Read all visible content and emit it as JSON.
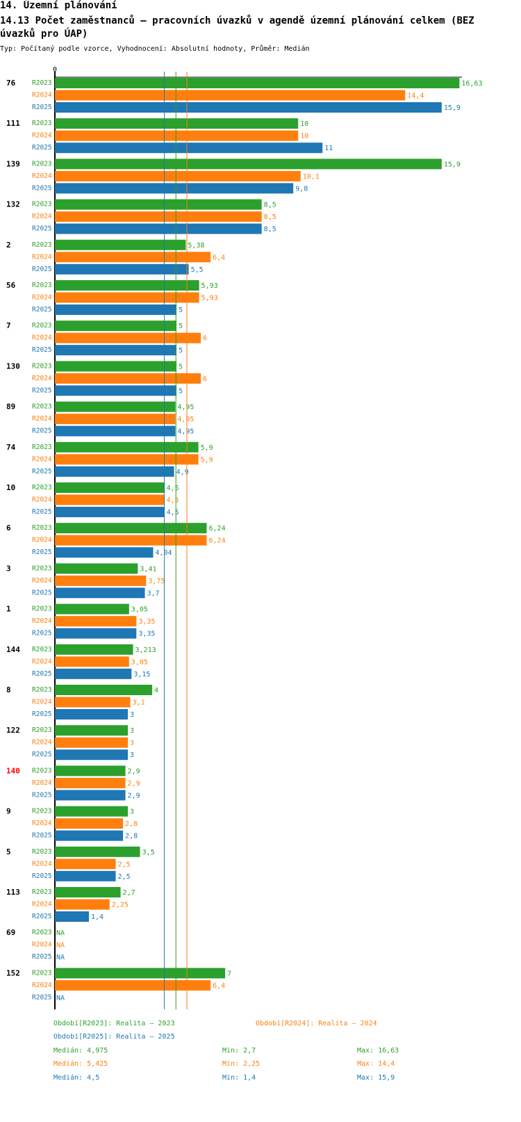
{
  "header": {
    "section": "14. Územní plánování",
    "title": "14.13 Počet zaměstnanců – pracovních úvazků v agendě územní plánování celkem (BEZ úvazků pro ÚAP)",
    "subtitle": "Typ: Počítaný podle vzorce, Vyhodnocení: Absolutní hodnoty, Průměr: Medián"
  },
  "colors": {
    "R2023": "#2ca02c",
    "R2024": "#ff7f0e",
    "R2025": "#1f77b4",
    "highlight": "#ff0000"
  },
  "chart_data": {
    "type": "bar",
    "orientation": "horizontal",
    "axis_zero_label": "0",
    "xlim": [
      0,
      16.63
    ],
    "series_names": [
      "R2023",
      "R2024",
      "R2025"
    ],
    "categories": [
      "76",
      "111",
      "139",
      "132",
      "2",
      "56",
      "7",
      "130",
      "89",
      "74",
      "10",
      "6",
      "3",
      "1",
      "144",
      "8",
      "122",
      "140",
      "9",
      "5",
      "113",
      "69",
      "152"
    ],
    "highlighted_category": "140",
    "groups": [
      {
        "id": "76",
        "values": [
          16.63,
          14.4,
          15.9
        ],
        "labels": [
          "16,63",
          "14,4",
          "15,9"
        ]
      },
      {
        "id": "111",
        "values": [
          10,
          10,
          11
        ],
        "labels": [
          "10",
          "10",
          "11"
        ]
      },
      {
        "id": "139",
        "values": [
          15.9,
          10.1,
          9.8
        ],
        "labels": [
          "15,9",
          "10,1",
          "9,8"
        ]
      },
      {
        "id": "132",
        "values": [
          8.5,
          8.5,
          8.5
        ],
        "labels": [
          "8,5",
          "8,5",
          "8,5"
        ]
      },
      {
        "id": "2",
        "values": [
          5.38,
          6.4,
          5.5
        ],
        "labels": [
          "5,38",
          "6,4",
          "5,5"
        ]
      },
      {
        "id": "56",
        "values": [
          5.93,
          5.93,
          5
        ],
        "labels": [
          "5,93",
          "5,93",
          "5"
        ]
      },
      {
        "id": "7",
        "values": [
          5,
          6,
          5
        ],
        "labels": [
          "5",
          "6",
          "5"
        ]
      },
      {
        "id": "130",
        "values": [
          5,
          6,
          5
        ],
        "labels": [
          "5",
          "6",
          "5"
        ]
      },
      {
        "id": "89",
        "values": [
          4.95,
          4.95,
          4.95
        ],
        "labels": [
          "4,95",
          "4,95",
          "4,95"
        ]
      },
      {
        "id": "74",
        "values": [
          5.9,
          5.9,
          4.9
        ],
        "labels": [
          "5,9",
          "5,9",
          "4,9"
        ]
      },
      {
        "id": "10",
        "values": [
          4.5,
          4.5,
          4.5
        ],
        "labels": [
          "4,5",
          "4,5",
          "4,5"
        ]
      },
      {
        "id": "6",
        "values": [
          6.24,
          6.24,
          4.04
        ],
        "labels": [
          "6,24",
          "6,24",
          "4,04"
        ]
      },
      {
        "id": "3",
        "values": [
          3.41,
          3.75,
          3.7
        ],
        "labels": [
          "3,41",
          "3,75",
          "3,7"
        ]
      },
      {
        "id": "1",
        "values": [
          3.05,
          3.35,
          3.35
        ],
        "labels": [
          "3,05",
          "3,35",
          "3,35"
        ]
      },
      {
        "id": "144",
        "values": [
          3.213,
          3.05,
          3.15
        ],
        "labels": [
          "3,213",
          "3,05",
          "3,15"
        ]
      },
      {
        "id": "8",
        "values": [
          4,
          3.1,
          3
        ],
        "labels": [
          "4",
          "3,1",
          "3"
        ]
      },
      {
        "id": "122",
        "values": [
          3,
          3,
          3
        ],
        "labels": [
          "3",
          "3",
          "3"
        ]
      },
      {
        "id": "140",
        "values": [
          2.9,
          2.9,
          2.9
        ],
        "labels": [
          "2,9",
          "2,9",
          "2,9"
        ]
      },
      {
        "id": "9",
        "values": [
          3,
          2.8,
          2.8
        ],
        "labels": [
          "3",
          "2,8",
          "2,8"
        ]
      },
      {
        "id": "5",
        "values": [
          3.5,
          2.5,
          2.5
        ],
        "labels": [
          "3,5",
          "2,5",
          "2,5"
        ]
      },
      {
        "id": "113",
        "values": [
          2.7,
          2.25,
          1.4
        ],
        "labels": [
          "2,7",
          "2,25",
          "1,4"
        ]
      },
      {
        "id": "69",
        "values": [
          null,
          null,
          null
        ],
        "labels": [
          "NA",
          "NA",
          "NA"
        ]
      },
      {
        "id": "152",
        "values": [
          7,
          6.4,
          null
        ],
        "labels": [
          "7",
          "6,4",
          "NA"
        ]
      }
    ],
    "median_lines": [
      {
        "series": "R2023",
        "value": 4.975
      },
      {
        "series": "R2024",
        "value": 5.425
      },
      {
        "series": "R2025",
        "value": 4.5
      }
    ]
  },
  "legend": {
    "r2023": "Období[R2023]: Realita – 2023",
    "r2024": "Období[R2024]: Realita – 2024",
    "r2025": "Období[R2025]: Realita – 2025"
  },
  "stats": [
    {
      "median": "Medián: 4,975",
      "min": "Min: 2,7",
      "max": "Max: 16,63"
    },
    {
      "median": "Medián: 5,425",
      "min": "Min: 2,25",
      "max": "Max: 14,4"
    },
    {
      "median": "Medián: 4,5",
      "min": "Min: 1,4",
      "max": "Max: 15,9"
    }
  ]
}
